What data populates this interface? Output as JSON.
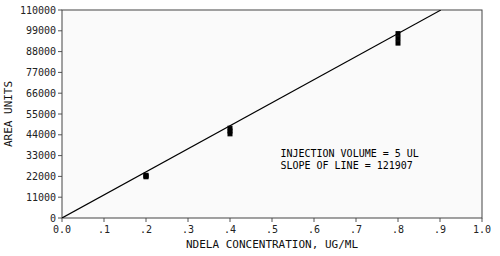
{
  "chart_data": {
    "type": "scatter",
    "title": "",
    "xlabel": "NDELA CONCENTRATION, UG/ML",
    "ylabel": "AREA UNITS",
    "xlim": [
      0.0,
      1.0
    ],
    "ylim": [
      0,
      110000
    ],
    "xticks": [
      {
        "value": 0.0,
        "label": "0.0"
      },
      {
        "value": 0.1,
        "label": ".1"
      },
      {
        "value": 0.2,
        "label": ".2"
      },
      {
        "value": 0.3,
        "label": ".3"
      },
      {
        "value": 0.4,
        "label": ".4"
      },
      {
        "value": 0.5,
        "label": ".5"
      },
      {
        "value": 0.6,
        "label": ".6"
      },
      {
        "value": 0.7,
        "label": ".7"
      },
      {
        "value": 0.8,
        "label": ".8"
      },
      {
        "value": 0.9,
        "label": ".9"
      },
      {
        "value": 1.0,
        "label": "1.0"
      }
    ],
    "yticks": [
      0,
      11000,
      22000,
      33000,
      44000,
      55000,
      66000,
      77000,
      88000,
      99000,
      110000
    ],
    "grid": false,
    "series": [
      {
        "type": "line",
        "line_style": "solid",
        "color": "#000000",
        "x": [
          0.0,
          0.902
        ],
        "values": [
          0,
          109960.114
        ]
      },
      {
        "type": "scatter",
        "marker": "square",
        "color": "#000000",
        "x": [
          0.2,
          0.2,
          0.2,
          0.4,
          0.4,
          0.4,
          0.8,
          0.8,
          0.8
        ],
        "values": [
          21800,
          22200,
          22600,
          44500,
          46000,
          47500,
          92500,
          95000,
          97500
        ]
      }
    ],
    "annotations": [
      "INJECTION VOLUME = 5 UL",
      "SLOPE OF LINE = 121907"
    ]
  }
}
